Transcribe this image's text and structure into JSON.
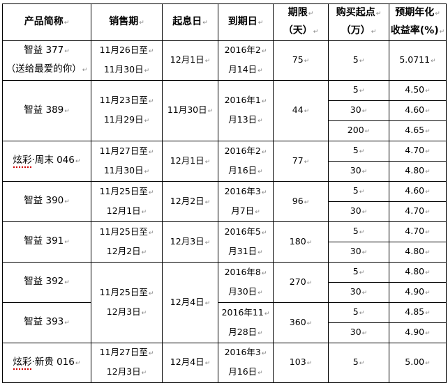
{
  "headers": [
    [
      "产品简称"
    ],
    [
      "销售期"
    ],
    [
      "起息日"
    ],
    [
      "到期日"
    ],
    [
      "期限",
      "（天）"
    ],
    [
      "购买起点",
      "（万）"
    ],
    [
      "预期年化",
      "收益率(%)"
    ]
  ],
  "groups": [
    {
      "sale_period": [
        "11月26日至",
        "11月30日"
      ],
      "start": "12月1日",
      "products": [
        {
          "name": [
            "智益 377",
            "（送给最爱的你）"
          ],
          "end": [
            "2016年2",
            "月14日"
          ],
          "term": "75",
          "tiers": [
            {
              "min": "5",
              "rate": "5.0711"
            }
          ]
        }
      ]
    },
    {
      "sale_period": [
        "11月23日至",
        "11月29日"
      ],
      "start": "11月30日",
      "products": [
        {
          "name": [
            "智益 389"
          ],
          "end": [
            "2016年1",
            "月13日"
          ],
          "term": "44",
          "tiers": [
            {
              "min": "5",
              "rate": "4.50"
            },
            {
              "min": "30",
              "rate": "4.60"
            },
            {
              "min": "200",
              "rate": "4.65"
            }
          ]
        }
      ]
    },
    {
      "sale_period": [
        "11月27日至",
        "11月30日"
      ],
      "start": "12月1日",
      "products": [
        {
          "name": [
            "炫彩·周末 046"
          ],
          "end": [
            "2016年2",
            "月16日"
          ],
          "term": "77",
          "tiers": [
            {
              "min": "5",
              "rate": "4.70"
            },
            {
              "min": "30",
              "rate": "4.80"
            }
          ]
        }
      ]
    },
    {
      "sale_period": [
        "11月25日至",
        "12月1日"
      ],
      "start": "12月2日",
      "products": [
        {
          "name": [
            "智益 390"
          ],
          "end": [
            "2016年3",
            "月7日"
          ],
          "term": "96",
          "tiers": [
            {
              "min": "5",
              "rate": "4.60"
            },
            {
              "min": "30",
              "rate": "4.70"
            }
          ]
        }
      ]
    },
    {
      "sale_period": [
        "11月25日至",
        "12月2日"
      ],
      "start": "12月3日",
      "products": [
        {
          "name": [
            "智益 391"
          ],
          "end": [
            "2016年5",
            "月31日"
          ],
          "term": "180",
          "tiers": [
            {
              "min": "5",
              "rate": "4.70"
            },
            {
              "min": "30",
              "rate": "4.80"
            }
          ]
        }
      ]
    },
    {
      "sale_period": [
        "11月25日至",
        "12月3日"
      ],
      "start": "12月4日",
      "products": [
        {
          "name": [
            "智益 392"
          ],
          "end": [
            "2016年8",
            "月30日"
          ],
          "term": "270",
          "tiers": [
            {
              "min": "5",
              "rate": "4.80"
            },
            {
              "min": "30",
              "rate": "4.90"
            }
          ]
        },
        {
          "name": [
            "智益 393"
          ],
          "end": [
            "2016年11",
            "月28日"
          ],
          "term": "360",
          "tiers": [
            {
              "min": "5",
              "rate": "4.85"
            },
            {
              "min": "30",
              "rate": "4.90"
            }
          ]
        }
      ]
    },
    {
      "sale_period": [
        "11月27日至",
        "12月3日"
      ],
      "start": "12月4日",
      "products": [
        {
          "name": [
            "炫彩·新贵 016"
          ],
          "end": [
            "2016年3",
            "月16日"
          ],
          "term": "103",
          "tiers": [
            {
              "min": "5",
              "rate": "5.00"
            }
          ]
        }
      ]
    }
  ]
}
